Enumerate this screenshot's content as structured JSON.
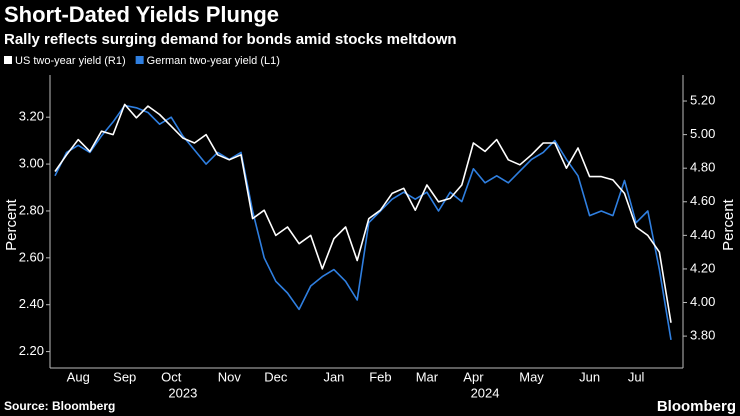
{
  "chart_data": {
    "type": "line",
    "title": "Short-Dated Yields Plunge",
    "subtitle": "Rally reflects surging demand for bonds amid stocks meltdown",
    "ylabel": "Percent",
    "y2label": "Percent",
    "source": "Source: Bloomberg",
    "logo": "Bloomberg",
    "grid": false,
    "categories": [
      null,
      null,
      "Aug",
      null,
      null,
      null,
      "Sep",
      null,
      null,
      null,
      "Oct",
      null,
      null,
      null,
      null,
      "Nov",
      null,
      null,
      null,
      "Dec",
      null,
      null,
      null,
      null,
      "Jan",
      null,
      null,
      null,
      "Feb",
      null,
      null,
      null,
      "Mar",
      null,
      null,
      null,
      "Apr",
      null,
      null,
      null,
      null,
      "May",
      null,
      null,
      null,
      null,
      "Jun",
      null,
      null,
      null,
      "Jul",
      null,
      null,
      null
    ],
    "year_labels": [
      null,
      null,
      null,
      null,
      null,
      null,
      null,
      null,
      null,
      null,
      null,
      "2023",
      null,
      null,
      null,
      null,
      null,
      null,
      null,
      null,
      null,
      null,
      null,
      null,
      null,
      null,
      null,
      null,
      null,
      null,
      null,
      null,
      null,
      null,
      null,
      null,
      null,
      "2024",
      null,
      null,
      null,
      null,
      null,
      null,
      null,
      null,
      null,
      null,
      null,
      null,
      null,
      null,
      null,
      null
    ],
    "series": [
      {
        "name": "US two-year yield (R1)",
        "color": "#ffffff",
        "axis": "y2",
        "values": [
          4.78,
          4.88,
          4.97,
          4.9,
          5.02,
          5.0,
          5.18,
          5.1,
          5.17,
          5.12,
          5.05,
          4.98,
          4.95,
          5.0,
          4.88,
          4.85,
          4.88,
          4.5,
          4.55,
          4.4,
          4.45,
          4.35,
          4.4,
          4.2,
          4.38,
          4.45,
          4.25,
          4.5,
          4.55,
          4.65,
          4.68,
          4.55,
          4.7,
          4.6,
          4.62,
          4.7,
          4.95,
          4.9,
          4.97,
          4.85,
          4.82,
          4.88,
          4.95,
          4.95,
          4.8,
          4.92,
          4.75,
          4.75,
          4.73,
          4.65,
          4.45,
          4.4,
          4.3,
          3.88
        ]
      },
      {
        "name": "German two-year yield (L1)",
        "color": "#2f7fe0",
        "values": [
          2.95,
          3.05,
          3.08,
          3.05,
          3.12,
          3.18,
          3.25,
          3.24,
          3.22,
          3.17,
          3.2,
          3.12,
          3.06,
          3.0,
          3.05,
          3.02,
          3.05,
          2.8,
          2.6,
          2.5,
          2.45,
          2.38,
          2.48,
          2.52,
          2.55,
          2.5,
          2.42,
          2.75,
          2.8,
          2.85,
          2.88,
          2.85,
          2.88,
          2.8,
          2.88,
          2.84,
          2.98,
          2.92,
          2.95,
          2.92,
          2.97,
          3.02,
          3.05,
          3.1,
          3.02,
          2.95,
          2.78,
          2.8,
          2.78,
          2.93,
          2.75,
          2.8,
          2.55,
          2.25
        ]
      }
    ],
    "ylim": [
      2.13,
      3.38
    ],
    "yticks": [
      {
        "value": 2.2,
        "label": "2.20"
      },
      {
        "value": 2.4,
        "label": "2.40"
      },
      {
        "value": 2.6,
        "label": "2.60"
      },
      {
        "value": 2.8,
        "label": "2.80"
      },
      {
        "value": 3.0,
        "label": "3.00"
      },
      {
        "value": 3.2,
        "label": "3.20"
      }
    ],
    "y2lim": [
      3.61,
      5.355
    ],
    "y2ticks": [
      {
        "value": 3.8,
        "label": "3.80"
      },
      {
        "value": 4.0,
        "label": "4.00"
      },
      {
        "value": 4.2,
        "label": "4.20"
      },
      {
        "value": 4.4,
        "label": "4.40"
      },
      {
        "value": 4.6,
        "label": "4.60"
      },
      {
        "value": 4.8,
        "label": "4.80"
      },
      {
        "value": 5.0,
        "label": "5.00"
      },
      {
        "value": 5.2,
        "label": "5.20"
      }
    ]
  }
}
